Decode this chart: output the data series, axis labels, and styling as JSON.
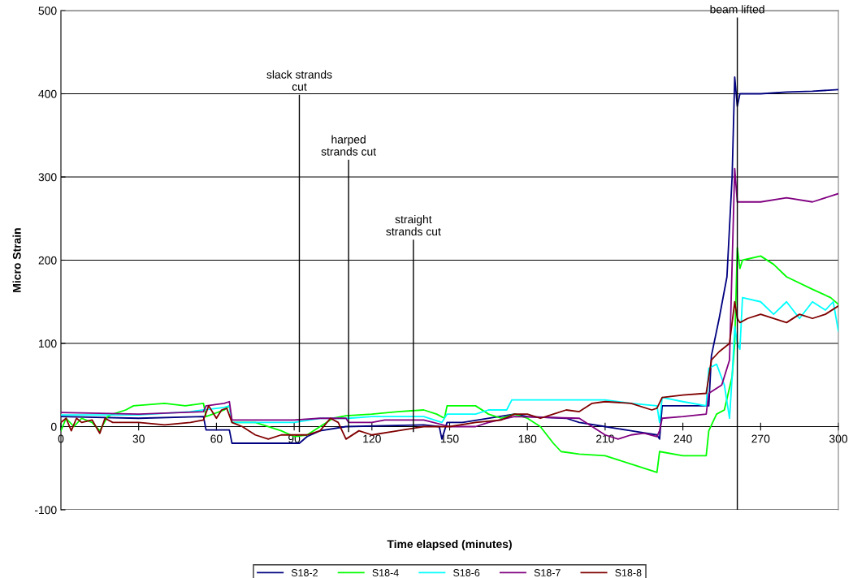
{
  "chart_data": {
    "type": "line",
    "xlabel": "Time elapsed (minutes)",
    "ylabel": "Micro Strain",
    "xlim": [
      0,
      300
    ],
    "xticks": [
      0,
      30,
      60,
      90,
      120,
      150,
      180,
      210,
      240,
      270,
      300
    ],
    "ylim": [
      -100,
      500
    ],
    "yticks": [
      -100,
      0,
      100,
      200,
      300,
      400,
      500
    ],
    "grid": "y",
    "legend": "bottom",
    "marker": "none",
    "line_style": "solid",
    "ref_lines": [
      {
        "axis": "x",
        "value": 92,
        "label": "slack strands\ncut",
        "color": "#000000"
      },
      {
        "axis": "x",
        "value": 111,
        "label": "harped\nstrands cut",
        "color": "#000000"
      },
      {
        "axis": "x",
        "value": 136,
        "label": "straight\nstrands cut",
        "color": "#000000"
      },
      {
        "axis": "x",
        "value": 261,
        "label": "beam lifted",
        "color": "#000000"
      }
    ],
    "series": [
      {
        "name": "S18-2",
        "color": "#000080",
        "x": [
          0,
          30,
          55,
          56,
          65,
          66,
          92,
          95,
          100,
          110,
          140,
          146,
          147,
          149,
          155,
          175,
          180,
          195,
          200,
          210,
          220,
          230,
          231,
          232,
          250,
          251,
          254,
          257,
          259,
          260,
          261,
          262,
          270,
          280,
          290,
          300
        ],
        "values": [
          12,
          10,
          12,
          -4,
          -4,
          -20,
          -20,
          -12,
          -5,
          0,
          2,
          0,
          -15,
          5,
          5,
          15,
          12,
          10,
          5,
          0,
          -5,
          -10,
          -15,
          25,
          25,
          85,
          130,
          180,
          300,
          420,
          385,
          400,
          400,
          402,
          403,
          405
        ]
      },
      {
        "name": "S18-4",
        "color": "#00ff00",
        "x": [
          0,
          2,
          5,
          8,
          12,
          15,
          18,
          20,
          25,
          28,
          40,
          48,
          55,
          56,
          63,
          65,
          66,
          75,
          85,
          90,
          95,
          100,
          105,
          110,
          120,
          130,
          140,
          145,
          148,
          149,
          160,
          165,
          170,
          175,
          180,
          185,
          190,
          193,
          200,
          210,
          220,
          230,
          231,
          240,
          249,
          250,
          253,
          256,
          259,
          260,
          261,
          262,
          263,
          270,
          275,
          280,
          290,
          297,
          300
        ],
        "values": [
          -5,
          10,
          0,
          10,
          5,
          -5,
          12,
          15,
          20,
          25,
          28,
          25,
          28,
          12,
          20,
          25,
          5,
          5,
          -5,
          -12,
          -10,
          0,
          10,
          13,
          15,
          18,
          20,
          15,
          10,
          25,
          25,
          15,
          10,
          15,
          10,
          0,
          -20,
          -30,
          -33,
          -35,
          -45,
          -55,
          -30,
          -35,
          -35,
          -5,
          15,
          20,
          60,
          100,
          215,
          190,
          200,
          205,
          195,
          180,
          165,
          155,
          147
        ]
      },
      {
        "name": "S18-6",
        "color": "#00ffff",
        "x": [
          0,
          30,
          50,
          55,
          63,
          65,
          66,
          80,
          90,
          100,
          111,
          120,
          140,
          147,
          149,
          160,
          165,
          172,
          174,
          200,
          210,
          220,
          230,
          231,
          232,
          240,
          249,
          250,
          253,
          256,
          258,
          259,
          260,
          261,
          262,
          263,
          270,
          275,
          280,
          285,
          290,
          295,
          298,
          300
        ],
        "values": [
          14,
          14,
          18,
          20,
          23,
          25,
          5,
          5,
          5,
          10,
          10,
          12,
          12,
          5,
          15,
          15,
          20,
          20,
          32,
          32,
          32,
          28,
          25,
          5,
          35,
          30,
          25,
          70,
          75,
          50,
          10,
          60,
          120,
          100,
          93,
          155,
          150,
          135,
          150,
          130,
          150,
          140,
          150,
          115
        ]
      },
      {
        "name": "S18-7",
        "color": "#800080",
        "x": [
          0,
          30,
          55,
          56,
          63,
          65,
          66,
          90,
          100,
          110,
          111,
          120,
          125,
          140,
          150,
          160,
          165,
          175,
          200,
          205,
          210,
          215,
          220,
          225,
          230,
          231,
          232,
          240,
          249,
          250,
          255,
          258,
          260,
          261,
          270,
          280,
          290,
          300
        ],
        "values": [
          17,
          15,
          18,
          25,
          28,
          30,
          8,
          8,
          10,
          10,
          5,
          5,
          8,
          8,
          0,
          0,
          5,
          12,
          10,
          0,
          -10,
          -15,
          -10,
          -8,
          -12,
          -5,
          10,
          12,
          15,
          40,
          50,
          80,
          310,
          270,
          270,
          275,
          270,
          280
        ]
      },
      {
        "name": "S18-8",
        "color": "#800000",
        "x": [
          0,
          2,
          4,
          6,
          8,
          12,
          15,
          17,
          20,
          30,
          40,
          50,
          55,
          57,
          60,
          62,
          64,
          66,
          70,
          75,
          80,
          85,
          90,
          95,
          100,
          104,
          107,
          110,
          115,
          120,
          130,
          140,
          150,
          160,
          170,
          175,
          180,
          185,
          190,
          195,
          200,
          205,
          210,
          220,
          228,
          230,
          232,
          240,
          249,
          251,
          254,
          258,
          260,
          261,
          262,
          265,
          270,
          280,
          285,
          290,
          295,
          300
        ],
        "values": [
          5,
          10,
          -5,
          10,
          5,
          8,
          -8,
          10,
          5,
          5,
          2,
          5,
          8,
          25,
          10,
          20,
          22,
          5,
          0,
          -10,
          -15,
          -10,
          -10,
          -10,
          -5,
          10,
          5,
          -15,
          -5,
          -10,
          -5,
          0,
          0,
          5,
          8,
          15,
          15,
          10,
          15,
          20,
          18,
          28,
          30,
          28,
          20,
          22,
          35,
          38,
          40,
          80,
          90,
          100,
          150,
          130,
          125,
          130,
          135,
          125,
          135,
          130,
          135,
          145
        ]
      }
    ]
  }
}
